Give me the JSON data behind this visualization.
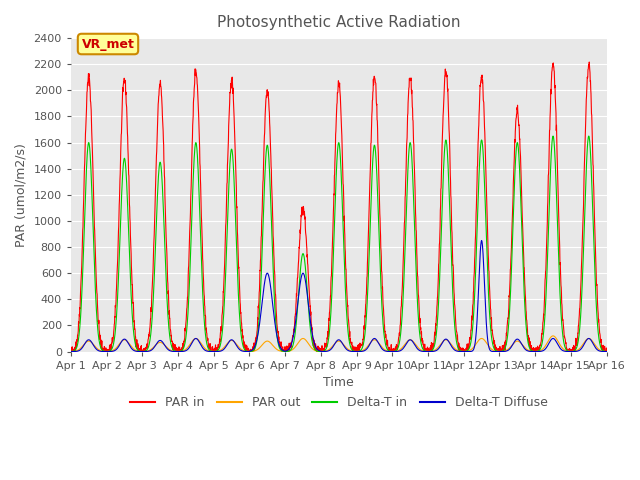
{
  "title": "Photosynthetic Active Radiation",
  "xlabel": "Time",
  "ylabel": "PAR (umol/m2/s)",
  "ylim": [
    0,
    2400
  ],
  "xlim_days": 15,
  "legend_labels": [
    "PAR in",
    "PAR out",
    "Delta-T in",
    "Delta-T Diffuse"
  ],
  "legend_colors": [
    "#ff0000",
    "#ffa500",
    "#00cc00",
    "#0000cc"
  ],
  "annotation_text": "VR_met",
  "annotation_bg": "#ffff99",
  "annotation_border": "#cc8800",
  "background_color": "#e8e8e8",
  "xtick_labels": [
    "Apr 1",
    "Apr 2",
    "Apr 3",
    "Apr 4",
    "Apr 5",
    "Apr 6",
    "Apr 7",
    "Apr 8",
    "Apr 9",
    "Apr 10",
    "Apr 11",
    "Apr 12",
    "Apr 13",
    "Apr 14",
    "Apr 15",
    "Apr 16"
  ],
  "ytick_labels": [
    0,
    200,
    400,
    600,
    800,
    1000,
    1200,
    1400,
    1600,
    1800,
    2000,
    2200,
    2400
  ]
}
